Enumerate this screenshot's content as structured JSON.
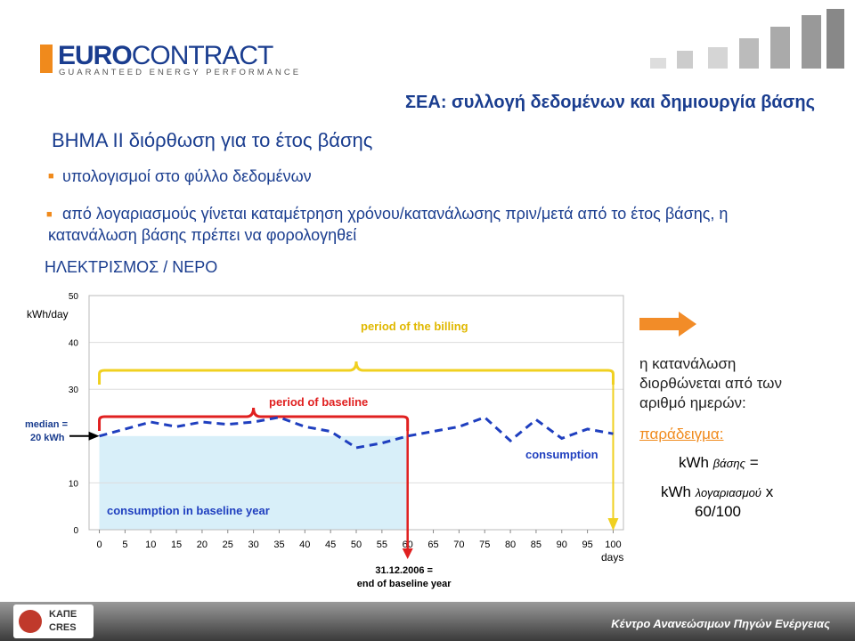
{
  "header": {
    "logo": [
      "EURO",
      "CONTRACT"
    ],
    "tagline": "GUARANTEED ENERGY PERFORMANCE",
    "subtitle": "ΣΕΑ: συλλογή δεδομένων και δημιουργία βάσης"
  },
  "title": "ΒΗΜΑ ΙΙ διόρθωση για το έτος βάσης",
  "bullets": [
    "υπολογισμοί στο φύλλο δεδομένων",
    "από λογαριασμούς γίνεται καταμέτρηση χρόνου/κατανάλωσης πριν/μετά από το έτος βάσης, η κατανάλωση βάσης πρέπει να φορολογηθεί"
  ],
  "section": "ΗΛΕΚΤΡΙΣΜΟΣ / ΝΕΡΟ",
  "chart_data": {
    "type": "line",
    "y_label": "kWh/day",
    "x_label": "days",
    "x": [
      0,
      5,
      10,
      15,
      20,
      25,
      30,
      35,
      40,
      45,
      50,
      55,
      60,
      65,
      70,
      75,
      80,
      85,
      90,
      95,
      100
    ],
    "series": [
      {
        "name": "consumption",
        "color": "#1f3fbf",
        "values": [
          20,
          21.5,
          23,
          22,
          23,
          22.5,
          23,
          24,
          22,
          21,
          17.5,
          18.5,
          20,
          21,
          22,
          24,
          19,
          23.5,
          19.5,
          21.5,
          20.5
        ]
      }
    ],
    "baseline": {
      "name": "consumption in baseline year",
      "value": 20,
      "range": [
        0,
        60
      ],
      "color": "#d8eff9"
    },
    "median_label": [
      "median =",
      "20 kWh"
    ],
    "baseline_period": {
      "label": "period of baseline",
      "range": [
        0,
        60
      ],
      "color": "#e02020"
    },
    "billing_period": {
      "label": "period of the billing",
      "range": [
        0,
        100
      ],
      "color": "#f0d020"
    },
    "baseline_end_label": [
      "31.12.2006 =",
      "end of baseline year"
    ],
    "xlim": [
      -2,
      102
    ],
    "ylim": [
      0,
      50
    ],
    "xticks": [
      0,
      5,
      10,
      15,
      20,
      25,
      30,
      35,
      40,
      45,
      50,
      55,
      60,
      65,
      70,
      75,
      80,
      85,
      90,
      95,
      100
    ],
    "yticks": [
      0,
      10,
      30,
      40,
      50
    ],
    "grid": true
  },
  "note": {
    "text": "η κατανάλωση διορθώνεται από των αριθμό ημερών:",
    "example": "παράδειγμα:",
    "formula": [
      [
        "kWh",
        "βάσης",
        "="
      ],
      [
        "kWh",
        "λογαριασμού",
        "x"
      ],
      [
        "60/100"
      ]
    ]
  },
  "footer": {
    "org_logo": [
      "ΚΑΠΕ",
      "CRES"
    ],
    "org": "Κέντρο Ανανεώσιμων Πηγών Ενέργειας"
  }
}
